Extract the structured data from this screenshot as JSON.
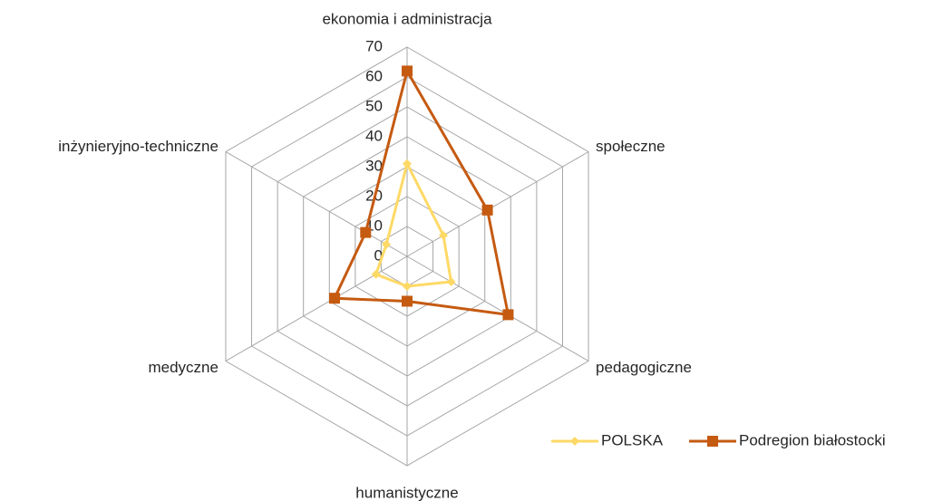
{
  "chart_data": {
    "type": "radar",
    "categories": [
      "ekonomia i administracja",
      "społeczne",
      "pedagogiczne",
      "humanistyczne",
      "medyczne",
      "inżynieryjno-techniczne"
    ],
    "series": [
      {
        "name": "POLSKA",
        "color": "#ffd966",
        "marker": "diamond",
        "values": [
          31,
          14,
          17,
          10,
          12,
          8
        ]
      },
      {
        "name": "Podregion białostocki",
        "color": "#c55a11",
        "marker": "square",
        "values": [
          62,
          31,
          39,
          15,
          28,
          16
        ]
      }
    ],
    "rlim": [
      0,
      70
    ],
    "rticks": [
      0,
      10,
      20,
      30,
      40,
      50,
      60,
      70
    ],
    "grid": true,
    "legend": "bottom-right"
  }
}
